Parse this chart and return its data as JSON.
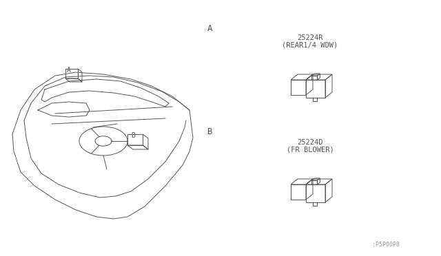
{
  "bg_color": "#f0f0f0",
  "line_color": "#555555",
  "text_color": "#555555",
  "title_label_A": "A",
  "title_label_B": "B",
  "relay1_part": "25224R",
  "relay1_desc": "(REAR1/4 WDW)",
  "relay2_part": "25224D",
  "relay2_desc": "(FR BLOWER)",
  "watermark": ":P5P00P8",
  "fig_width": 6.4,
  "fig_height": 3.72,
  "dpi": 100
}
